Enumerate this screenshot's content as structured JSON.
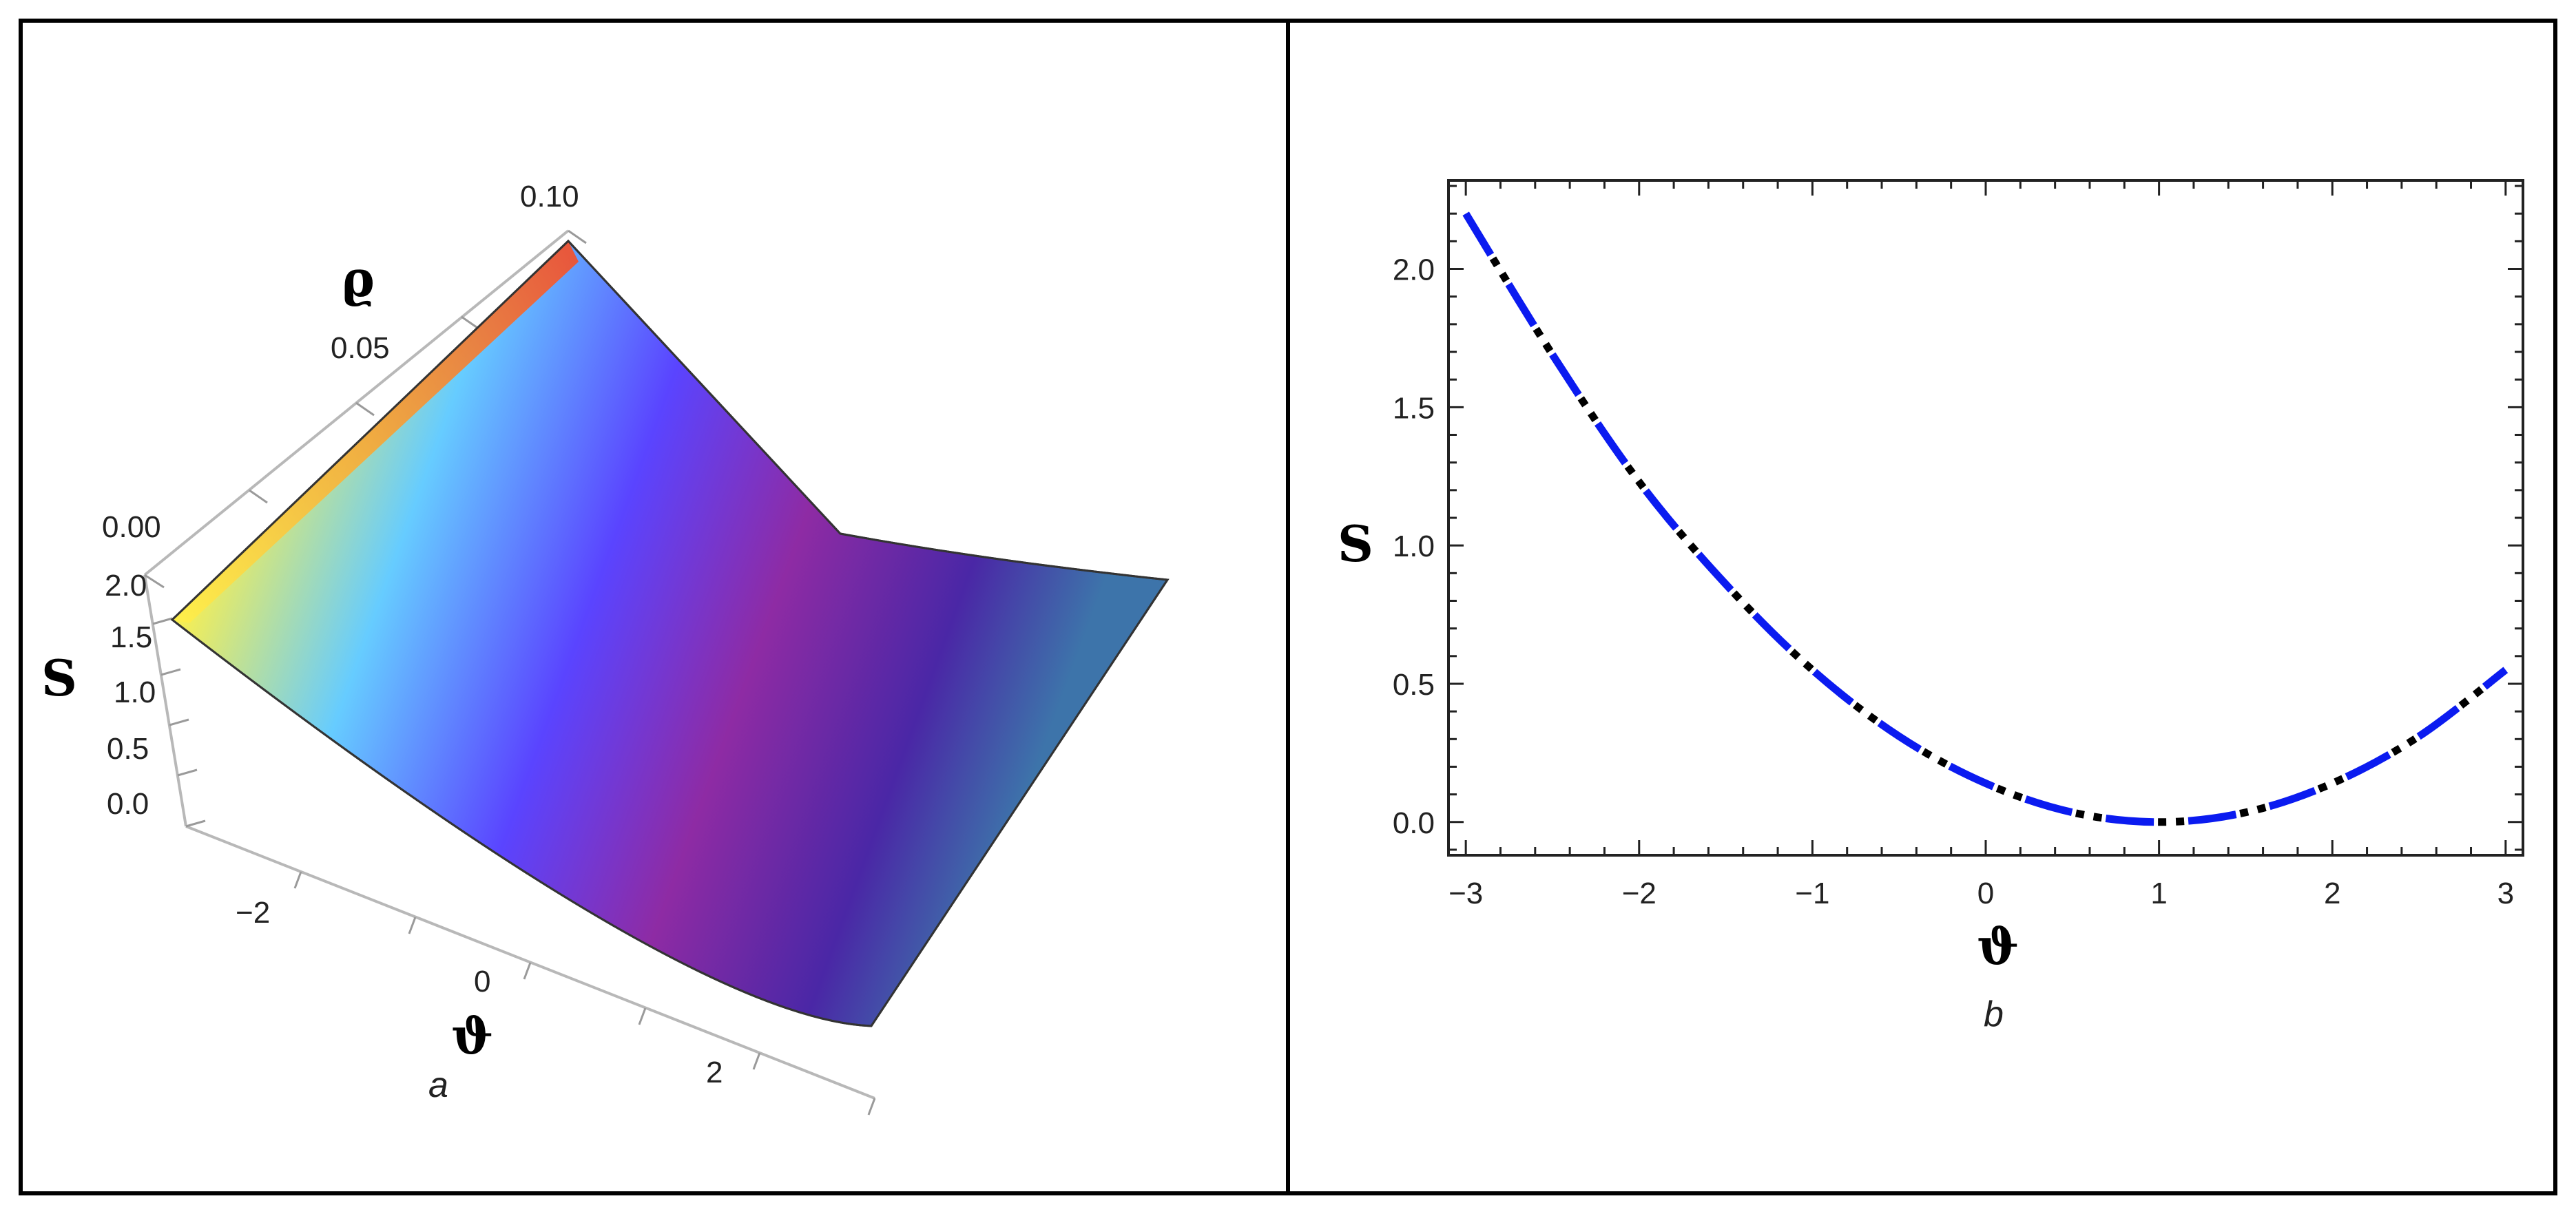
{
  "chart_data": [
    {
      "panel": "a",
      "type": "surface",
      "function": "S = (ϑ - 1)^2 / 8",
      "xlabel": "ϑ",
      "ylabel": "ϱ",
      "zlabel": "S",
      "x_range": [
        -3,
        3
      ],
      "y_range": [
        0,
        0.1
      ],
      "z_range": [
        0,
        2.0
      ],
      "x_ticks": [
        "−2",
        "0",
        "2"
      ],
      "y_ticks": [
        "0.00",
        "0.05",
        "0.10"
      ],
      "z_ticks": [
        "0.0",
        "0.5",
        "1.0",
        "1.5",
        "2.0"
      ],
      "colors": [
        "#ffee55",
        "#55ccff",
        "#5544ff",
        "#8a2c9e",
        "#4a2aa0",
        "#3a6aa8"
      ],
      "sublabel": "a"
    },
    {
      "panel": "b",
      "type": "line",
      "xlabel": "ϑ",
      "ylabel": "S",
      "xlim": [
        -3.1,
        3.1
      ],
      "ylim": [
        -0.12,
        2.32
      ],
      "x_ticks": [
        -3,
        -2,
        -1,
        0,
        1,
        2,
        3
      ],
      "x_tick_labels": [
        "−3",
        "−2",
        "−1",
        "0",
        "1",
        "2",
        "3"
      ],
      "y_ticks": [
        0,
        0.5,
        1.0,
        1.5,
        2.0
      ],
      "y_tick_labels": [
        "0.0",
        "0.5",
        "1.0",
        "1.5",
        "2.0"
      ],
      "series": [
        {
          "style": "dash-dot",
          "colors": [
            "#0b1bf0",
            "#000000"
          ],
          "x": [
            -3,
            -2.5,
            -2,
            -1.5,
            -1,
            -0.5,
            0,
            0.5,
            1,
            1.5,
            2,
            2.5,
            3
          ],
          "y": [
            2.2,
            1.69,
            1.23,
            0.86,
            0.55,
            0.31,
            0.14,
            0.035,
            0.0,
            0.035,
            0.14,
            0.31,
            0.55
          ]
        }
      ],
      "sublabel": "b"
    }
  ]
}
